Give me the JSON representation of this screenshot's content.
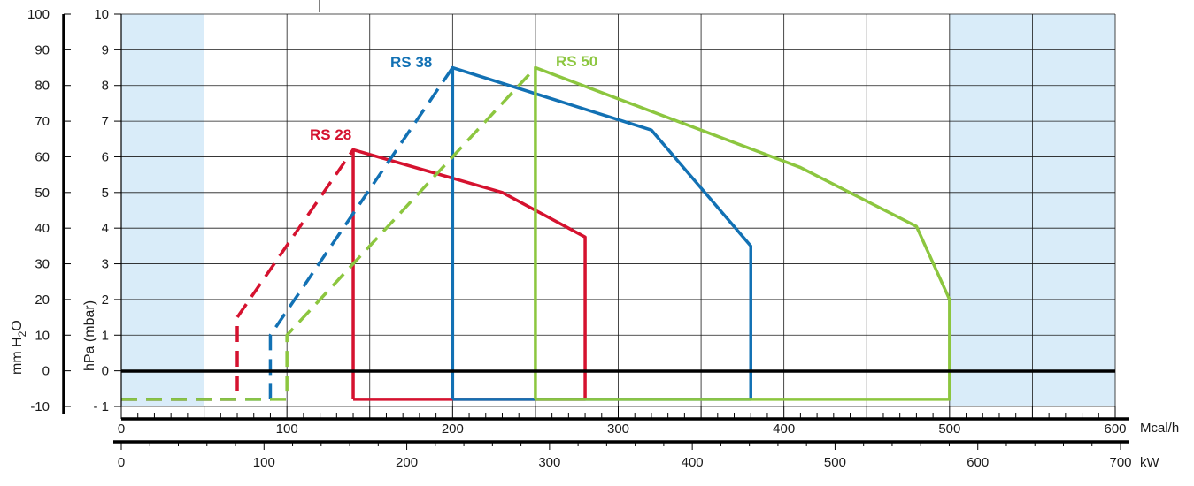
{
  "chart_data": {
    "type": "line",
    "title": "",
    "colors": {
      "background_band": "#d9ecf9",
      "plot_inner": "#ffffff",
      "grid": "#1a1a1a",
      "axis": "#000000"
    },
    "y_axes": {
      "left_outer": {
        "label_parts": [
          "mm H",
          "2",
          "O"
        ],
        "ticks": [
          "100",
          "90",
          "80",
          "70",
          "60",
          "50",
          "40",
          "30",
          "20",
          "10",
          "0",
          "-10"
        ],
        "range": [
          -10,
          100
        ]
      },
      "left_inner": {
        "label": "hPa (mbar)",
        "ticks": [
          "10",
          "9",
          "8",
          "7",
          "6",
          "5",
          "4",
          "3",
          "2",
          "1",
          "0",
          "- 1"
        ],
        "range": [
          -1,
          10
        ]
      }
    },
    "x_axes": {
      "mcal": {
        "unit": "Mcal/h",
        "ticks": [
          "0",
          "100",
          "200",
          "300",
          "400",
          "500",
          "600"
        ],
        "range": [
          0,
          600
        ]
      },
      "kw": {
        "unit": "kW",
        "ticks": [
          "0",
          "100",
          "200",
          "300",
          "400",
          "500",
          "600",
          "700"
        ],
        "range": [
          0,
          700
        ]
      }
    },
    "grid": true,
    "series": [
      {
        "name": "RS 28",
        "color": "#d5122f",
        "dashed": [
          [
            0,
            -0.8
          ],
          [
            70,
            -0.8
          ],
          [
            70,
            1.5
          ],
          [
            140,
            6.2
          ]
        ],
        "solid": [
          [
            140,
            -0.8
          ],
          [
            140,
            6.2
          ],
          [
            230,
            5.0
          ],
          [
            280,
            3.75
          ],
          [
            280,
            -0.8
          ],
          [
            140,
            -0.8
          ]
        ]
      },
      {
        "name": "RS 38",
        "color": "#1271b4",
        "dashed": [
          [
            0,
            -0.8
          ],
          [
            90,
            -0.8
          ],
          [
            90,
            1.0
          ],
          [
            200,
            8.5
          ]
        ],
        "solid": [
          [
            200,
            -0.8
          ],
          [
            200,
            8.5
          ],
          [
            320,
            6.75
          ],
          [
            380,
            3.5
          ],
          [
            380,
            -0.8
          ],
          [
            200,
            -0.8
          ]
        ]
      },
      {
        "name": "RS 50",
        "color": "#8cc63f",
        "dashed": [
          [
            0,
            -0.8
          ],
          [
            100,
            -0.8
          ],
          [
            100,
            1.0
          ],
          [
            250,
            8.5
          ]
        ],
        "solid": [
          [
            250,
            -0.8
          ],
          [
            250,
            8.5
          ],
          [
            410,
            5.7
          ],
          [
            480,
            4.05
          ],
          [
            500,
            2.0
          ],
          [
            500,
            -0.8
          ],
          [
            250,
            -0.8
          ]
        ]
      }
    ]
  }
}
